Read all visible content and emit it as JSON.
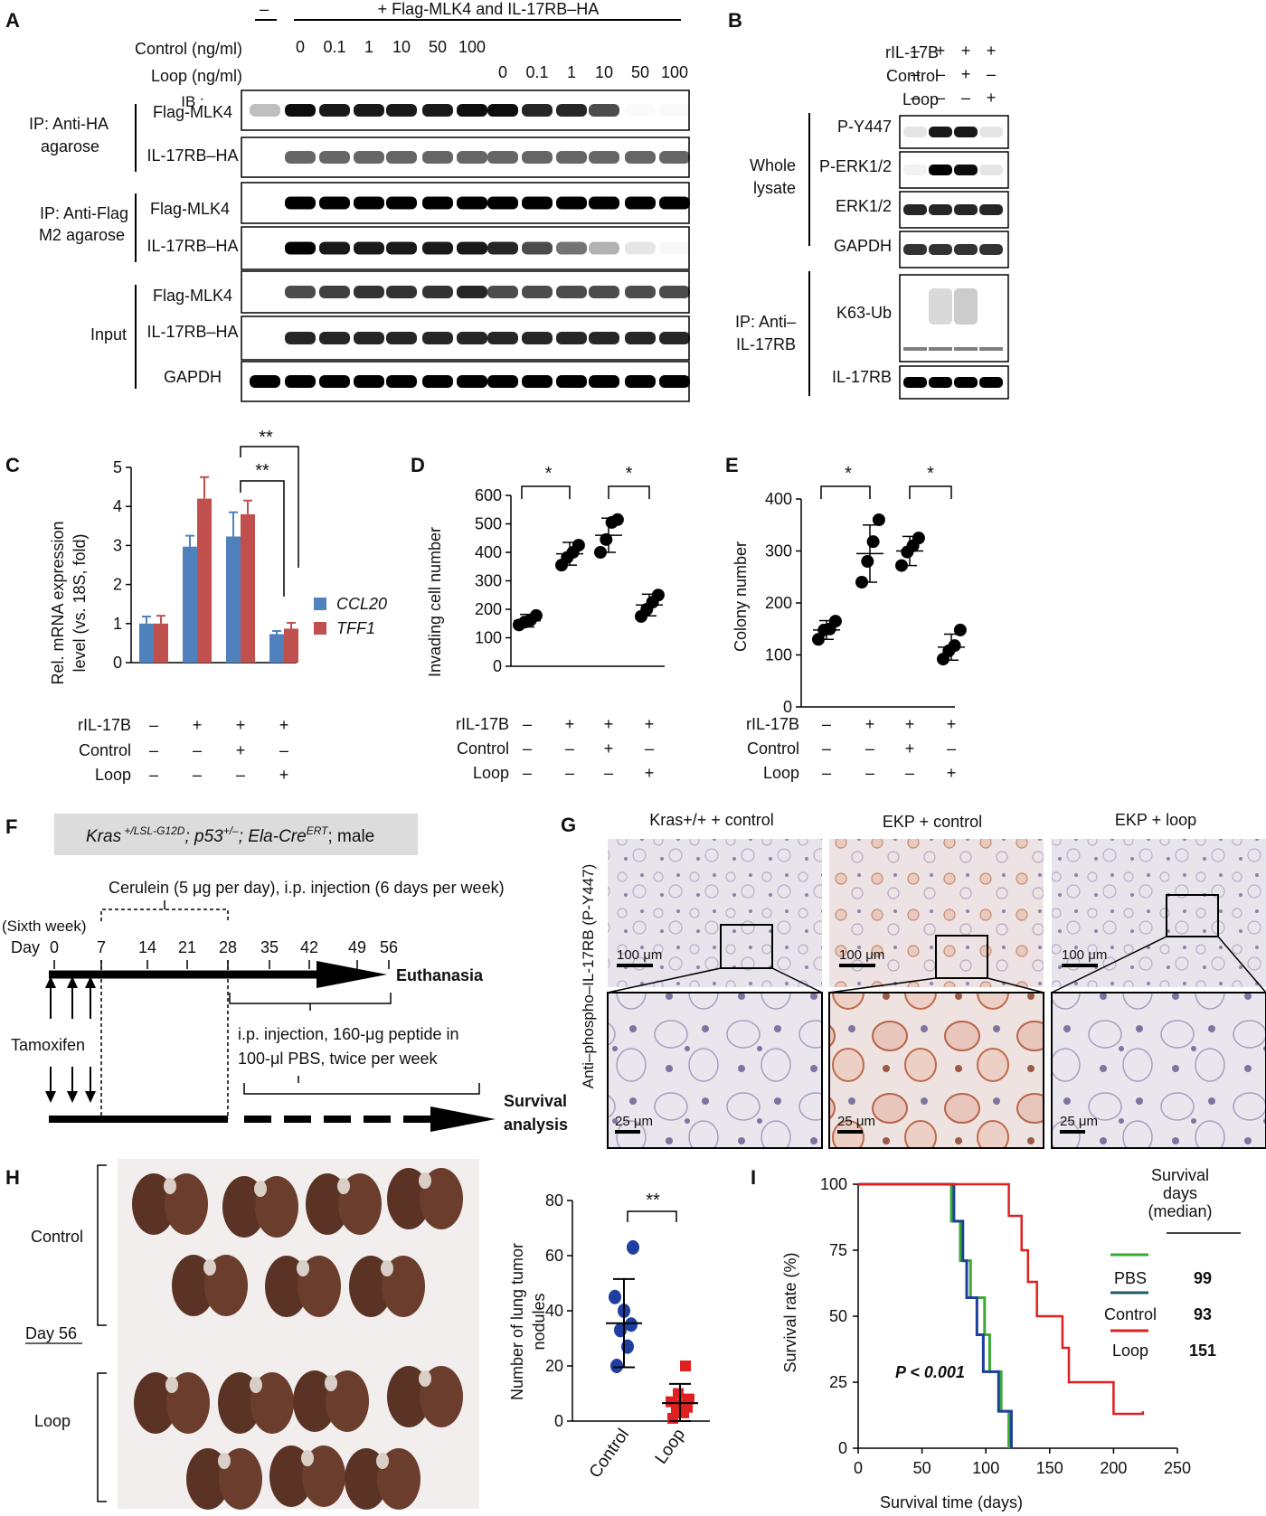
{
  "panel_letters": [
    "A",
    "B",
    "C",
    "D",
    "E",
    "F",
    "G",
    "H",
    "I"
  ],
  "A": {
    "header_minus": "–",
    "header_flag": "+ Flag-MLK4 and IL-17RB–HA",
    "control_label": "Control (ng/ml)",
    "loop_label": "Loop (ng/ml)",
    "control_doses": [
      "0",
      "0.1",
      "1",
      "10",
      "50",
      "100"
    ],
    "loop_doses": [
      "0",
      "0.1",
      "1",
      "10",
      "50",
      "100"
    ],
    "group1_line1": "IP: Anti-HA",
    "group1_line2": "agarose",
    "group2_line1": "IP: Anti-Flag",
    "group2_line2": "M2 agarose",
    "group3": "Input",
    "ib_label": "IB :",
    "blots": [
      "Flag-MLK4",
      "IL-17RB–HA",
      "Flag-MLK4",
      "IL-17RB–HA",
      "Flag-MLK4",
      "IL-17RB–HA",
      "GAPDH"
    ]
  },
  "B": {
    "rows": [
      {
        "label": "rIL-17B",
        "signs": [
          "–",
          "+",
          "+",
          "+"
        ]
      },
      {
        "label": "Control",
        "signs": [
          "–",
          "–",
          "+",
          "–"
        ]
      },
      {
        "label": "Loop",
        "signs": [
          "–",
          "–",
          "–",
          "+"
        ]
      }
    ],
    "group1_line1": "Whole",
    "group1_line2": "lysate",
    "group2_line1": "IP: Anti–",
    "group2_line2": "IL-17RB",
    "blots": [
      "P-Y447",
      "P-ERK1/2",
      "ERK1/2",
      "GAPDH",
      "K63-Ub",
      "IL-17RB"
    ]
  },
  "C": {
    "ylabel_line1": "Rel. mRNA expression",
    "ylabel_line2": "level (vs. 18S, fold)",
    "legend": [
      "CCL20",
      "TFF1"
    ],
    "sig": [
      "**",
      "**"
    ],
    "row_labels": [
      "rIL-17B",
      "Control",
      "Loop"
    ],
    "signs": [
      [
        "–",
        "+",
        "+",
        "+"
      ],
      [
        "–",
        "–",
        "+",
        "–"
      ],
      [
        "–",
        "–",
        "–",
        "+"
      ]
    ]
  },
  "D": {
    "ylabel": "Invading cell number",
    "sig": [
      "*",
      "*"
    ],
    "row_labels": [
      "rIL-17B",
      "Control",
      "Loop"
    ],
    "signs": [
      [
        "–",
        "+",
        "+",
        "+"
      ],
      [
        "–",
        "–",
        "+",
        "–"
      ],
      [
        "–",
        "–",
        "–",
        "+"
      ]
    ]
  },
  "E": {
    "ylabel": "Colony number",
    "sig": [
      "*",
      "*"
    ],
    "row_labels": [
      "rIL-17B",
      "Control",
      "Loop"
    ],
    "signs": [
      [
        "–",
        "+",
        "+",
        "+"
      ],
      [
        "–",
        "–",
        "+",
        "–"
      ],
      [
        "–",
        "–",
        "–",
        "+"
      ]
    ]
  },
  "F": {
    "genotype": "Kras +/LSL-G12D; p53+/–; Ela-CreERT; male",
    "cerulein": "Cerulein (5 μg per day), i.p. injection (6 days per week)",
    "sixth_week": "(Sixth week)",
    "day_label": "Day",
    "days": [
      "0",
      "7",
      "14",
      "21",
      "28",
      "35",
      "42",
      "49",
      "56"
    ],
    "euthanasia": "Euthanasia",
    "tamoxifen": "Tamoxifen",
    "injection_line1": "i.p. injection, 160-μg peptide in",
    "injection_line2": "100-μl PBS, twice per week",
    "survival_line1": "Survival",
    "survival_line2": "analysis"
  },
  "G": {
    "titles": [
      "Kras+/+ + control",
      "EKP + control",
      "EKP + loop"
    ],
    "ylabel": "Anti–phospho–IL-17RB (P-Y447)",
    "scale_top": "100 μm",
    "scale_bottom": "25 μm"
  },
  "H": {
    "group_control": "Control",
    "group_loop": "Loop",
    "day": "Day 56",
    "ylabel_line1": "Number of lung tumor",
    "ylabel_line2": "nodules",
    "sig": "**"
  },
  "I": {
    "ylabel": "Survival rate (%)",
    "xlabel": "Survival time (days)",
    "pvalue": "P < 0.001",
    "header_line1": "Survival",
    "header_line2": "days",
    "header_line3": "(median)",
    "medians": [
      "99",
      "93",
      "151"
    ]
  },
  "colors": {
    "blue": "#4f81bd",
    "red": "#c0504d",
    "navy": "#1f3fa0",
    "redmark": "#e02020",
    "green": "#3aaa35",
    "kmblue": "#1f3f9a",
    "kmred": "#e02020"
  },
  "chart_data": [
    {
      "panel": "C",
      "type": "bar",
      "categories": [
        "1",
        "2",
        "3",
        "4"
      ],
      "series": [
        {
          "name": "CCL20",
          "values": [
            1.0,
            2.97,
            3.23,
            0.73
          ],
          "errors": [
            0.18,
            0.28,
            0.62,
            0.08
          ]
        },
        {
          "name": "TFF1",
          "values": [
            1.0,
            4.2,
            3.8,
            0.87
          ],
          "errors": [
            0.2,
            0.55,
            0.35,
            0.15
          ]
        }
      ],
      "ylim": [
        0,
        5
      ],
      "yticks": [
        "0",
        "1",
        "2",
        "3",
        "4",
        "5"
      ]
    },
    {
      "panel": "D",
      "type": "scatter",
      "groups": [
        {
          "mean": 160,
          "sd": 22,
          "points": [
            145,
            155,
            162,
            178
          ]
        },
        {
          "mean": 395,
          "sd": 40,
          "points": [
            355,
            382,
            400,
            425
          ]
        },
        {
          "mean": 460,
          "sd": 60,
          "points": [
            400,
            445,
            505,
            515
          ]
        },
        {
          "mean": 215,
          "sd": 38,
          "points": [
            175,
            200,
            225,
            250
          ]
        }
      ],
      "ylim": [
        0,
        600
      ],
      "yticks": [
        "0",
        "100",
        "200",
        "300",
        "400",
        "500",
        "600"
      ]
    },
    {
      "panel": "E",
      "type": "scatter",
      "groups": [
        {
          "mean": 148,
          "sd": 18,
          "points": [
            130,
            148,
            150,
            165
          ]
        },
        {
          "mean": 295,
          "sd": 55,
          "points": [
            240,
            280,
            318,
            360
          ]
        },
        {
          "mean": 300,
          "sd": 28,
          "points": [
            272,
            298,
            310,
            325
          ]
        },
        {
          "mean": 115,
          "sd": 25,
          "points": [
            92,
            108,
            118,
            148
          ]
        }
      ],
      "ylim": [
        0,
        400
      ],
      "yticks": [
        "0",
        "100",
        "200",
        "300",
        "400"
      ]
    },
    {
      "panel": "H",
      "type": "scatter",
      "categories": [
        "Control",
        "Loop"
      ],
      "groups": [
        {
          "mean": 35.5,
          "sd": 16,
          "points": [
            20,
            27,
            33,
            35,
            40,
            45,
            63
          ]
        },
        {
          "mean": 6.5,
          "sd": 7,
          "points": [
            1,
            3,
            4,
            5,
            6,
            7,
            8,
            10,
            20
          ]
        }
      ],
      "ylim": [
        0,
        80
      ],
      "yticks": [
        "0",
        "20",
        "40",
        "60",
        "80"
      ]
    },
    {
      "panel": "I",
      "type": "line",
      "series": [
        {
          "name": "PBS",
          "points": [
            [
              0,
              100
            ],
            [
              73,
              100
            ],
            [
              73,
              86
            ],
            [
              80,
              86
            ],
            [
              80,
              71
            ],
            [
              88,
              71
            ],
            [
              88,
              57
            ],
            [
              99,
              57
            ],
            [
              99,
              43
            ],
            [
              103,
              43
            ],
            [
              103,
              29
            ],
            [
              112,
              29
            ],
            [
              112,
              14
            ],
            [
              118,
              14
            ],
            [
              118,
              0
            ]
          ]
        },
        {
          "name": "Control",
          "points": [
            [
              0,
              100
            ],
            [
              75,
              100
            ],
            [
              75,
              86
            ],
            [
              82,
              86
            ],
            [
              82,
              71
            ],
            [
              85,
              71
            ],
            [
              85,
              57
            ],
            [
              93,
              57
            ],
            [
              93,
              43
            ],
            [
              98,
              43
            ],
            [
              98,
              29
            ],
            [
              110,
              29
            ],
            [
              110,
              14
            ],
            [
              120,
              14
            ],
            [
              120,
              0
            ]
          ]
        },
        {
          "name": "Loop",
          "points": [
            [
              0,
              100
            ],
            [
              118,
              100
            ],
            [
              118,
              88
            ],
            [
              128,
              88
            ],
            [
              128,
              75
            ],
            [
              133,
              75
            ],
            [
              133,
              63
            ],
            [
              140,
              63
            ],
            [
              140,
              50
            ],
            [
              152,
              50
            ],
            [
              152,
              50
            ],
            [
              160,
              50
            ],
            [
              160,
              38
            ],
            [
              165,
              38
            ],
            [
              165,
              25
            ],
            [
              185,
              25
            ],
            [
              185,
              25
            ],
            [
              200,
              25
            ],
            [
              200,
              13
            ],
            [
              223,
              13
            ],
            [
              223,
              14
            ]
          ]
        }
      ],
      "xlim": [
        0,
        250
      ],
      "ylim": [
        0,
        100
      ],
      "xticks": [
        "0",
        "50",
        "100",
        "150",
        "200",
        "250"
      ],
      "yticks": [
        "0",
        "25",
        "50",
        "75",
        "100"
      ]
    }
  ]
}
